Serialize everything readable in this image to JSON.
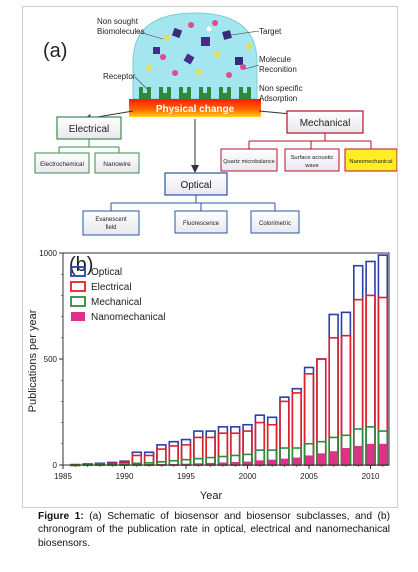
{
  "schematic": {
    "panel_label": "(a)",
    "labels": {
      "non_sought": [
        "Non sought",
        "Biomolecules"
      ],
      "target": "Target",
      "molecule_recognition": [
        "Molecule",
        "Reconition"
      ],
      "receptor": "Receptor",
      "non_specific": [
        "Non specific",
        "Adsorption"
      ],
      "physical_change": "Physical change"
    },
    "categories": {
      "electrical": "Electrical",
      "mechanical": "Mechanical",
      "optical": "Optical"
    },
    "sub": {
      "electrochemical": "Electrochemical",
      "nanowire": "Nanowire",
      "quartz": "Quartz microbalance",
      "saw": [
        "Surface acoustic",
        "wave"
      ],
      "nanomechanical": "Nanomechanical",
      "evanescent": [
        "Evanescent",
        "field"
      ],
      "fluorescence": "Fluorescence",
      "colorimetric": "Colorimetric"
    },
    "colors": {
      "dome": "#9fe3ee",
      "physical_band": "#ff2200",
      "electrical": "#3c8a4e",
      "mechanical": "#b5122e",
      "optical": "#2457a6",
      "nano_box": "#ffee22"
    }
  },
  "chart_data": {
    "type": "bar",
    "panel_label": "(b)",
    "xlabel": "Year",
    "ylabel": "Publications per year",
    "xlim": [
      1985,
      2011.5
    ],
    "ylim": [
      0,
      1000
    ],
    "xticks": [
      1985,
      1990,
      1995,
      2000,
      2005,
      2010
    ],
    "yticks": [
      0,
      500,
      1000
    ],
    "legend_position": "top-left",
    "x": [
      1986,
      1987,
      1988,
      1989,
      1990,
      1991,
      1992,
      1993,
      1994,
      1995,
      1996,
      1997,
      1998,
      1999,
      2000,
      2001,
      2002,
      2003,
      2004,
      2005,
      2006,
      2007,
      2008,
      2009,
      2010,
      2011
    ],
    "series": [
      {
        "name": "Optical",
        "color": "#2a3fa8",
        "values": [
          2,
          5,
          8,
          12,
          18,
          60,
          60,
          95,
          110,
          120,
          160,
          160,
          180,
          180,
          190,
          235,
          225,
          320,
          360,
          460,
          500,
          710,
          720,
          940,
          960,
          990
        ]
      },
      {
        "name": "Electrical",
        "color": "#e0202a",
        "values": [
          1,
          3,
          5,
          8,
          12,
          45,
          45,
          75,
          90,
          95,
          130,
          130,
          150,
          150,
          160,
          200,
          190,
          300,
          340,
          430,
          500,
          600,
          610,
          780,
          800,
          790
        ]
      },
      {
        "name": "Mechanical",
        "color": "#2e8b3a",
        "values": [
          0,
          1,
          2,
          3,
          4,
          8,
          10,
          15,
          20,
          25,
          30,
          35,
          40,
          45,
          50,
          70,
          70,
          80,
          80,
          100,
          110,
          130,
          140,
          170,
          180,
          160
        ]
      },
      {
        "name": "Nanomechanical",
        "color": "#e0308a",
        "filled": true,
        "values": [
          0,
          0,
          0,
          0,
          1,
          2,
          2,
          4,
          5,
          6,
          8,
          10,
          12,
          14,
          16,
          22,
          25,
          30,
          35,
          45,
          55,
          65,
          80,
          90,
          100,
          100
        ]
      }
    ]
  },
  "caption": {
    "label": "Figure 1:",
    "text": " (a) Schematic of biosensor and biosensor subclasses, and (b) chronogram of the publication rate in optical, electrical and nanomechanical biosensors."
  }
}
